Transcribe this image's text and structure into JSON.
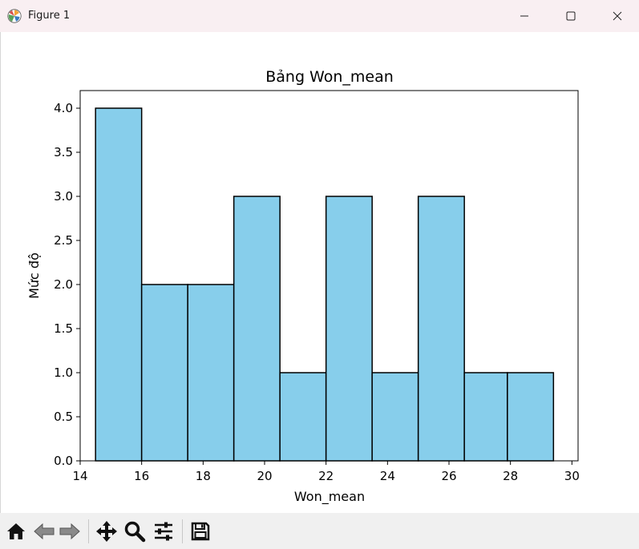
{
  "window": {
    "title": "Figure 1",
    "controls": [
      "minimize-icon",
      "maximize-icon",
      "close-icon"
    ]
  },
  "toolbar": {
    "tools": [
      "home-icon",
      "back-arrow-icon",
      "forward-arrow-icon",
      "pan-icon",
      "zoom-icon",
      "configure-subplots-icon",
      "save-icon"
    ]
  },
  "colors": {
    "bar_fill": "#87ceeb",
    "bar_edge": "#000000",
    "titlebar": "#f9eff2",
    "toolbar": "#f0f0f0"
  },
  "chart_data": {
    "type": "bar",
    "title": "Bảng Won_mean",
    "xlabel": "Won_mean",
    "ylabel": "Mức độ",
    "bin_edges": [
      14.5,
      16.0,
      17.5,
      19.0,
      20.5,
      22.0,
      23.5,
      25.0,
      26.5,
      27.9,
      29.4
    ],
    "values": [
      4,
      2,
      2,
      3,
      1,
      3,
      1,
      3,
      1,
      1
    ],
    "xlim": [
      14.0,
      30.2
    ],
    "ylim": [
      0,
      4.2
    ],
    "xticks": [
      "14",
      "16",
      "18",
      "20",
      "22",
      "24",
      "26",
      "28",
      "30"
    ],
    "yticks": [
      "0.0",
      "0.5",
      "1.0",
      "1.5",
      "2.0",
      "2.5",
      "3.0",
      "3.5",
      "4.0"
    ],
    "grid": false,
    "legend": "none"
  }
}
